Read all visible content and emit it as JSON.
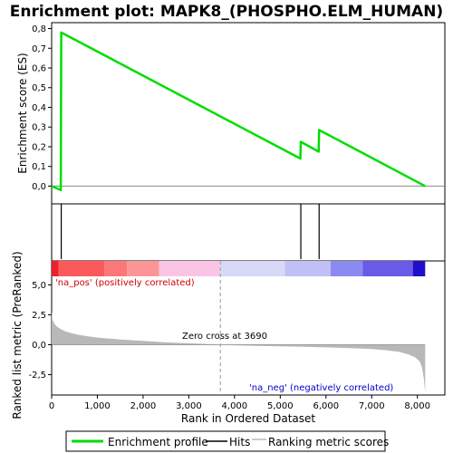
{
  "chart_data": {
    "type": "line",
    "title": "Enrichment plot: MAPK8_(PHOSPHO.ELM_HUMAN)",
    "xlabel": "Rank in Ordered Dataset",
    "x_ticks": [
      0,
      1000,
      2000,
      3000,
      4000,
      5000,
      6000,
      7000,
      8000
    ],
    "x_tick_labels": [
      "0",
      "1,000",
      "2,000",
      "3,000",
      "4,000",
      "5,000",
      "6,000",
      "7,000",
      "8,000"
    ],
    "xlim": [
      0,
      8600
    ],
    "panels": {
      "enrichment": {
        "ylabel": "Enrichment score (ES)",
        "ylim": [
          -0.09,
          0.83
        ],
        "y_ticks": [
          0.0,
          0.1,
          0.2,
          0.3,
          0.4,
          0.5,
          0.6,
          0.7,
          0.8
        ],
        "y_tick_labels": [
          "0,0",
          "0,1",
          "0,2",
          "0,3",
          "0,4",
          "0,5",
          "0,6",
          "0,7",
          "0,8"
        ],
        "series": [
          {
            "name": "Enrichment profile",
            "color": "#00dd00",
            "x": [
              0,
              200,
              210,
              5440,
              5450,
              5840,
              5850,
              8170
            ],
            "y": [
              0.0,
              -0.02,
              0.78,
              0.14,
              0.225,
              0.175,
              0.285,
              0.0
            ]
          }
        ]
      },
      "hits": {
        "positions": [
          210,
          5450,
          5850
        ],
        "color": "#000000"
      },
      "ranked_metric": {
        "ylabel": "Ranked list metric (PreRanked)",
        "ylim": [
          -4.2,
          7.0
        ],
        "y_ticks": [
          -2.5,
          0.0,
          2.5,
          5.0
        ],
        "y_tick_labels": [
          "-2,5",
          "0,0",
          "2,5",
          "5,0"
        ],
        "fill_color": "#b8b8b8",
        "x": [
          0,
          20,
          60,
          120,
          200,
          300,
          450,
          600,
          800,
          1000,
          1300,
          1600,
          2000,
          2500,
          3000,
          3500,
          3690,
          4000,
          4500,
          5000,
          5500,
          6000,
          6500,
          7000,
          7300,
          7600,
          7800,
          7950,
          8050,
          8100,
          8140,
          8170
        ],
        "y": [
          2.8,
          2.1,
          1.75,
          1.5,
          1.3,
          1.12,
          0.95,
          0.82,
          0.7,
          0.6,
          0.5,
          0.42,
          0.32,
          0.2,
          0.12,
          0.05,
          0.0,
          -0.05,
          -0.09,
          -0.13,
          -0.17,
          -0.22,
          -0.28,
          -0.36,
          -0.45,
          -0.6,
          -0.8,
          -1.05,
          -1.4,
          -1.9,
          -2.8,
          -4.0
        ]
      }
    },
    "annotations": {
      "pos_label": "'na_pos' (positively correlated)",
      "neg_label": "'na_neg' (negatively correlated)",
      "zero_cross": "Zero cross at 3690",
      "zero_cross_x": 3690,
      "pos_color": "#cc0000",
      "neg_color": "#0000cc"
    },
    "color_bar": {
      "x_end": 8170,
      "segments": [
        {
          "x0": 0,
          "x1": 150,
          "color": "#f0202a"
        },
        {
          "x0": 150,
          "x1": 1150,
          "color": "#fb5a5a"
        },
        {
          "x0": 1150,
          "x1": 1650,
          "color": "#fc7878"
        },
        {
          "x0": 1650,
          "x1": 2350,
          "color": "#fc9696"
        },
        {
          "x0": 2350,
          "x1": 3690,
          "color": "#fbc4e4"
        },
        {
          "x0": 3690,
          "x1": 5100,
          "color": "#d8d8f8"
        },
        {
          "x0": 5100,
          "x1": 6100,
          "color": "#c0c0f6"
        },
        {
          "x0": 6100,
          "x1": 6800,
          "color": "#8a8af0"
        },
        {
          "x0": 6800,
          "x1": 7900,
          "color": "#6a5ae8"
        },
        {
          "x0": 7900,
          "x1": 8170,
          "color": "#2010c8"
        }
      ]
    },
    "legend": {
      "placement": "bottom",
      "items": [
        {
          "label": "Enrichment profile",
          "color": "#00dd00"
        },
        {
          "label": "Hits",
          "color": "#000000"
        },
        {
          "label": "Ranking metric scores",
          "color": "#b8b8b8"
        }
      ]
    }
  }
}
